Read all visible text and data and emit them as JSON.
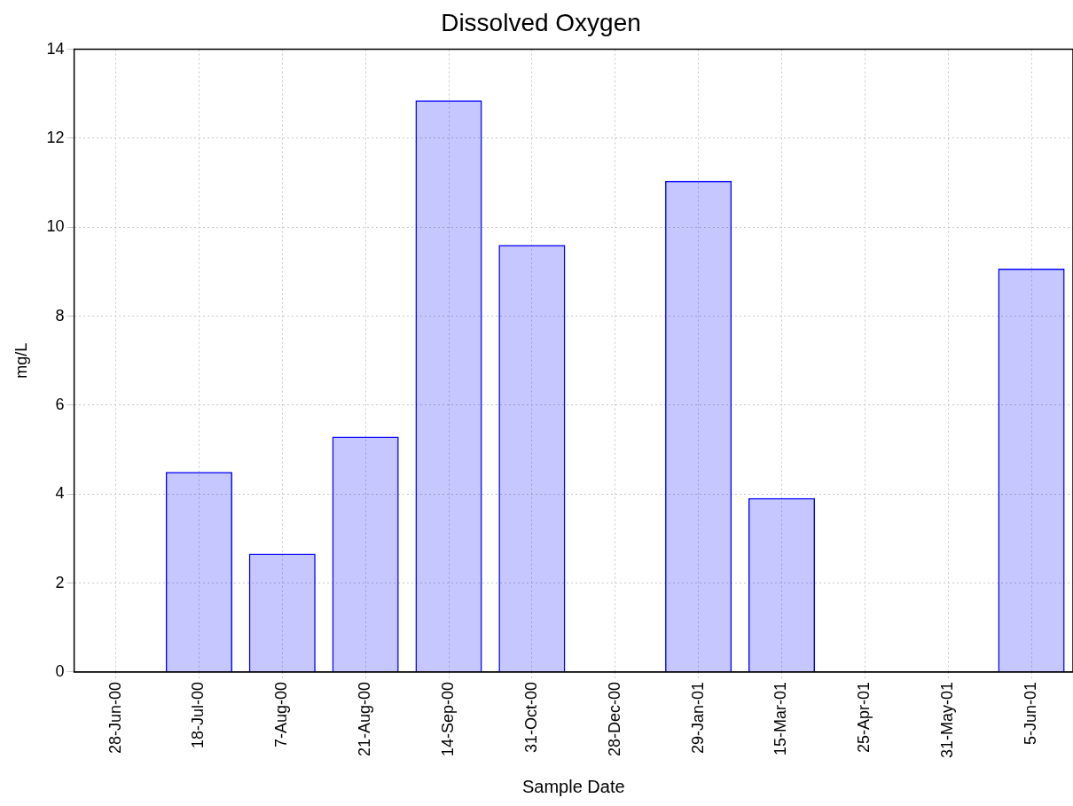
{
  "chart_data": {
    "type": "bar",
    "title": "Dissolved Oxygen",
    "xlabel": "Sample Date",
    "ylabel": "mg/L",
    "categories": [
      "28-Jun-00",
      "18-Jul-00",
      "7-Aug-00",
      "21-Aug-00",
      "14-Sep-00",
      "31-Oct-00",
      "28-Dec-00",
      "29-Jan-01",
      "15-Mar-01",
      "25-Apr-01",
      "31-May-01",
      "5-Jun-01"
    ],
    "values": [
      null,
      4.5,
      2.66,
      5.29,
      12.85,
      9.6,
      null,
      11.04,
      3.91,
      null,
      null,
      9.07
    ],
    "color": "#0000ff",
    "ylim": [
      0,
      14
    ],
    "yticks": [
      0,
      2,
      4,
      6,
      8,
      10,
      12,
      14
    ],
    "grid": true,
    "legend": false
  }
}
